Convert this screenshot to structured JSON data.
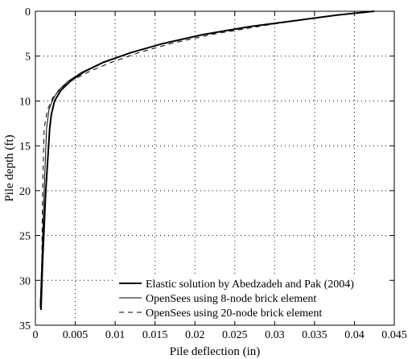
{
  "chart_data": {
    "type": "line",
    "title": "",
    "xlabel": "Pile deflection (in)",
    "ylabel": "Pile depth (ft)",
    "xlim": [
      0,
      0.045
    ],
    "ylim": [
      35,
      0
    ],
    "y_inverted": true,
    "grid": true,
    "legend_position": "bottom-right",
    "x_ticks": [
      0,
      0.005,
      0.01,
      0.015,
      0.02,
      0.025,
      0.03,
      0.035,
      0.04,
      0.045
    ],
    "x_tick_labels": [
      "0",
      "0.005",
      "0.01",
      "0.015",
      "0.02",
      "0.025",
      "0.03",
      "0.035",
      "0.04",
      "0.045"
    ],
    "y_ticks": [
      0,
      5,
      10,
      15,
      20,
      25,
      30,
      35
    ],
    "y_tick_labels": [
      "0",
      "5",
      "10",
      "15",
      "20",
      "25",
      "30",
      "35"
    ],
    "series": [
      {
        "name": "Elastic solution by Abedzadeh and Pak (2004)",
        "style": "thick-solid",
        "x": [
          0.0425,
          0.038,
          0.033,
          0.027,
          0.021,
          0.016,
          0.012,
          0.0085,
          0.0062,
          0.0045,
          0.0032,
          0.0024,
          0.002,
          0.0018,
          0.0013,
          0.0009,
          0.0007
        ],
        "y": [
          0,
          0.4,
          1.0,
          1.7,
          2.6,
          3.6,
          4.6,
          5.7,
          6.7,
          7.7,
          8.8,
          10.0,
          11.5,
          13.0,
          20.0,
          28.0,
          33.3
        ]
      },
      {
        "name": "OpenSees using 8-node brick element",
        "style": "thin-solid",
        "x": [
          0.0425,
          0.038,
          0.033,
          0.027,
          0.021,
          0.016,
          0.012,
          0.0082,
          0.0058,
          0.0041,
          0.0029,
          0.0022,
          0.0017,
          0.0014,
          0.0011,
          0.0008,
          0.0006
        ],
        "y": [
          0,
          0.4,
          1.0,
          1.7,
          2.6,
          3.6,
          4.6,
          5.8,
          6.8,
          7.8,
          8.8,
          9.8,
          11.0,
          13.0,
          20.0,
          28.0,
          33.0
        ]
      },
      {
        "name": "OpenSees using 20-node brick element",
        "style": "dashed",
        "x": [
          0.0425,
          0.038,
          0.033,
          0.028,
          0.022,
          0.017,
          0.013,
          0.0095,
          0.0068,
          0.0048,
          0.0033,
          0.0022,
          0.0015,
          0.0011,
          0.0009,
          0.0008,
          0.0006
        ],
        "y": [
          0,
          0.4,
          1.0,
          1.7,
          2.6,
          3.6,
          4.6,
          5.7,
          6.7,
          7.6,
          8.5,
          9.6,
          11.0,
          13.0,
          20.0,
          28.0,
          33.0
        ]
      }
    ]
  }
}
